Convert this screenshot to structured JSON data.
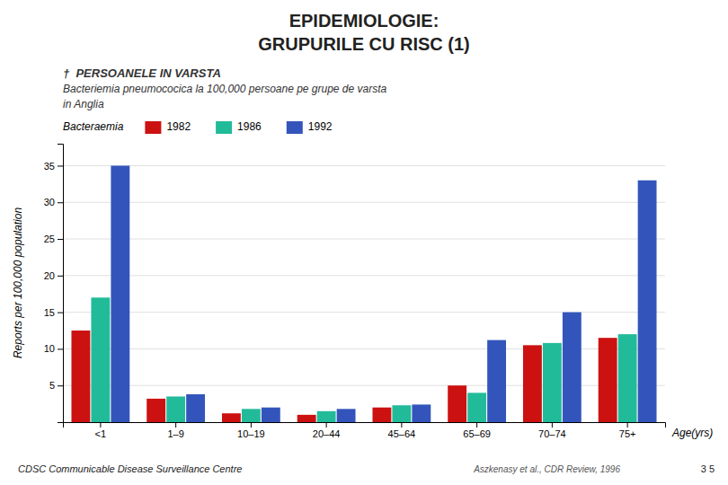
{
  "chart_data": {
    "type": "bar",
    "title": [
      "EPIDEMIOLOGIE:",
      "GRUPURILE CU RISC (1)"
    ],
    "subtitle": [
      "†  PERSOANELE IN VARSTA",
      "Bacteriemia pneumococica la 100,000 persoane pe grupe de varsta",
      "in Anglia"
    ],
    "legend_title": "Bacteraemia",
    "categories": [
      "<1",
      "1–9",
      "10–19",
      "20–44",
      "45–64",
      "65–69",
      "70–74",
      "75+"
    ],
    "series": [
      {
        "name": "1982",
        "color": "#CC1111",
        "values": [
          12.5,
          3.2,
          1.2,
          1.0,
          2.0,
          5.0,
          10.5,
          11.5
        ]
      },
      {
        "name": "1986",
        "color": "#22BB99",
        "values": [
          17.0,
          3.5,
          1.8,
          1.5,
          2.3,
          4.0,
          10.8,
          12.0
        ]
      },
      {
        "name": "1992",
        "color": "#3355BB",
        "values": [
          35.0,
          3.8,
          2.0,
          1.8,
          2.4,
          11.2,
          15.0,
          33.0
        ]
      }
    ],
    "ylabel": "Reports per 100,000 population",
    "xlabel": "Age(yrs)",
    "annotations": [
      "CDSC Communicable Disease Surveillance Centre",
      "Aszkenasy et al., CDR Review, 1996",
      "3 5"
    ],
    "ylim": [
      0,
      38
    ],
    "yticks": [
      5,
      10,
      15,
      20,
      25,
      30,
      35
    ],
    "grid": true,
    "legend": "top"
  }
}
